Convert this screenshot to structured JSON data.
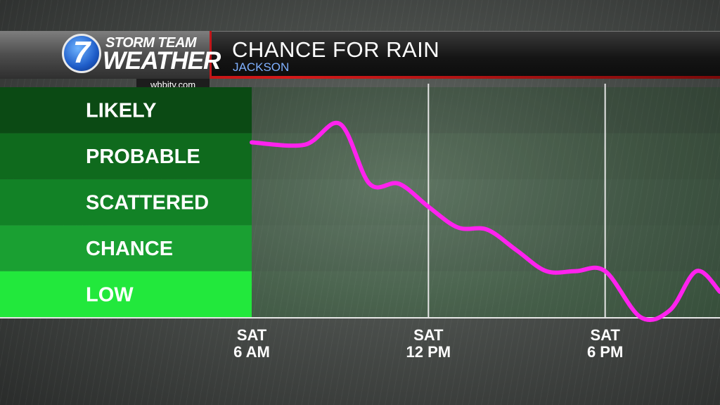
{
  "header": {
    "logo_number": "7",
    "logo_line1": "STORM TEAM",
    "logo_line2": "WEATHER",
    "website": "wbbjtv.com",
    "title": "CHANCE FOR RAIN",
    "subtitle": "JACKSON"
  },
  "colors": {
    "line": "#ff22ee",
    "band_likely": "#0b4a14",
    "band_probable": "#0f6a1d",
    "band_scattered": "#128226",
    "band_chance": "#1aa032",
    "band_low": "#22e83c",
    "header_red": "#c1161a",
    "subtitle_blue": "#7fb0ff"
  },
  "chart_data": {
    "type": "line",
    "title": "CHANCE FOR RAIN",
    "categories_y": [
      "LOW",
      "CHANCE",
      "SCATTERED",
      "PROBABLE",
      "LIKELY"
    ],
    "x_ticks": [
      {
        "day": "SAT",
        "time": "6 AM",
        "hour": 6
      },
      {
        "day": "SAT",
        "time": "12 PM",
        "hour": 12
      },
      {
        "day": "SAT",
        "time": "6 PM",
        "hour": 18
      }
    ],
    "xlim": [
      6,
      21.9
    ],
    "ylim": [
      0,
      5
    ],
    "grid": true,
    "series": [
      {
        "values": [
          {
            "x": 6.0,
            "y": 3.8
          },
          {
            "x": 7.8,
            "y": 3.75
          },
          {
            "x": 9.0,
            "y": 4.2
          },
          {
            "x": 10.0,
            "y": 2.9
          },
          {
            "x": 11.0,
            "y": 2.9
          },
          {
            "x": 12.0,
            "y": 2.4
          },
          {
            "x": 13.0,
            "y": 1.95
          },
          {
            "x": 14.0,
            "y": 1.9
          },
          {
            "x": 15.0,
            "y": 1.45
          },
          {
            "x": 16.0,
            "y": 1.0
          },
          {
            "x": 17.0,
            "y": 1.0
          },
          {
            "x": 18.0,
            "y": 1.0
          },
          {
            "x": 19.2,
            "y": 0.0
          },
          {
            "x": 20.2,
            "y": 0.15
          },
          {
            "x": 21.1,
            "y": 1.0
          },
          {
            "x": 21.9,
            "y": 0.55
          }
        ]
      }
    ]
  }
}
